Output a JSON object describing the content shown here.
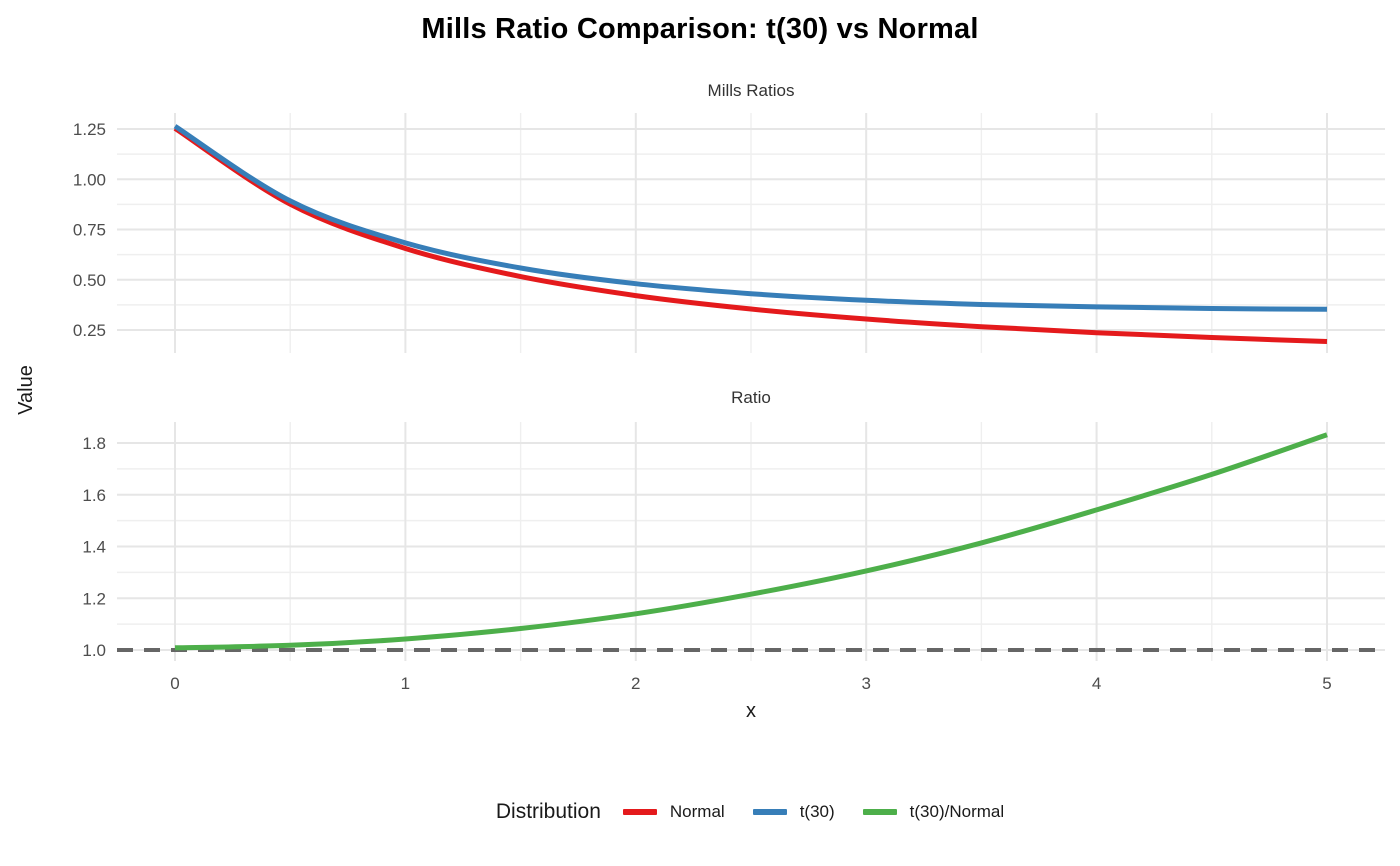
{
  "title": "Mills Ratio Comparison: t(30) vs Normal",
  "axes": {
    "x_label": "x",
    "y_label": "Value"
  },
  "facets": [
    {
      "label": "Mills Ratios"
    },
    {
      "label": "Ratio"
    }
  ],
  "legend": {
    "title": "Distribution",
    "items": [
      {
        "label": "Normal",
        "color": "#E41A1C"
      },
      {
        "label": "t(30)",
        "color": "#377EB8"
      },
      {
        "label": "t(30)/Normal",
        "color": "#4DAF4A"
      }
    ]
  },
  "colors": {
    "normal_line": "#E41A1C",
    "t30_line": "#377EB8",
    "ratio_line": "#4DAF4A",
    "reference_line": "#666666",
    "grid_major": "#E6E6E6",
    "grid_minor": "#EFEFEF",
    "tick_text": "#4D4D4D",
    "background": "#FFFFFF"
  },
  "chart_data": [
    {
      "type": "line",
      "facet": "Mills Ratios",
      "x": [
        0,
        0.5,
        1,
        1.5,
        2,
        2.5,
        3,
        3.5,
        4,
        4.5,
        5
      ],
      "series": [
        {
          "name": "Normal",
          "color": "#E41A1C",
          "values": [
            1.2533,
            0.8764,
            0.6557,
            0.5158,
            0.4214,
            0.3543,
            0.3046,
            0.2666,
            0.2367,
            0.2126,
            0.1928
          ]
        },
        {
          "name": "t(30)",
          "color": "#377EB8",
          "values": [
            1.2638,
            0.8922,
            0.6835,
            0.5586,
            0.4804,
            0.4307,
            0.3977,
            0.3769,
            0.3648,
            0.3568,
            0.3532
          ]
        }
      ],
      "xlabel": "x",
      "ylabel": "Value",
      "xlim": [
        -0.2517,
        5.2518
      ],
      "ylim": [
        0.1356,
        1.3296
      ],
      "xticks": [
        0,
        1,
        2,
        3,
        4,
        5
      ],
      "xtick_labels": [
        "0",
        "1",
        "2",
        "3",
        "4",
        "5"
      ],
      "yticks": [
        0.25,
        0.5,
        0.75,
        1.0,
        1.25
      ],
      "ytick_labels": [
        "0.25",
        "0.50",
        "0.75",
        "1.00",
        "1.25"
      ],
      "grid": true,
      "legend_position": "bottom"
    },
    {
      "type": "line",
      "facet": "Ratio",
      "x": [
        0,
        0.5,
        1,
        1.5,
        2,
        2.5,
        3,
        3.5,
        4,
        4.5,
        5
      ],
      "series": [
        {
          "name": "t(30)/Normal",
          "color": "#4DAF4A",
          "values": [
            1.0084,
            1.018,
            1.0424,
            1.083,
            1.14,
            1.2158,
            1.3056,
            1.4138,
            1.5416,
            1.6786,
            1.8316
          ]
        }
      ],
      "xlabel": "x",
      "ylabel": "Value",
      "xlim": [
        -0.2517,
        5.2518
      ],
      "ylim": [
        0.9575,
        1.8812
      ],
      "xticks": [
        0,
        1,
        2,
        3,
        4,
        5
      ],
      "xtick_labels": [
        "0",
        "1",
        "2",
        "3",
        "4",
        "5"
      ],
      "yticks": [
        1.0,
        1.2,
        1.4,
        1.6,
        1.8
      ],
      "ytick_labels": [
        "1.0",
        "1.2",
        "1.4",
        "1.6",
        "1.8"
      ],
      "annotations": [
        {
          "type": "hline",
          "y": 1.0,
          "style": "dashed",
          "color": "#666666"
        }
      ],
      "grid": true,
      "legend_position": "bottom"
    }
  ]
}
